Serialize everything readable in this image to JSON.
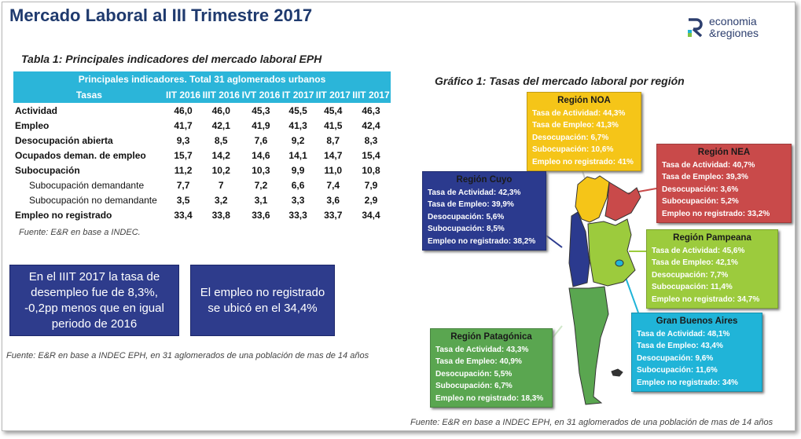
{
  "title": "Mercado Laboral al III Trimestre 2017",
  "logo": {
    "line1": "economia",
    "line2": "&regiones"
  },
  "table1": {
    "caption": "Tabla 1: Principales indicadores del mercado laboral EPH",
    "super_header": "Principales indicadores. Total 31 aglomerados urbanos",
    "columns": [
      "Tasas",
      "IIT 2016",
      "IIIT 2016",
      "IVT 2016",
      "IT 2017",
      "IIT 2017",
      "IIIT 2017"
    ],
    "rows": [
      {
        "label": "Actividad",
        "values": [
          "46,0",
          "46,0",
          "45,3",
          "45,5",
          "45,4",
          "46,3"
        ]
      },
      {
        "label": "Empleo",
        "values": [
          "41,7",
          "42,1",
          "41,9",
          "41,3",
          "41,5",
          "42,4"
        ]
      },
      {
        "label": "Desocupación abierta",
        "values": [
          "9,3",
          "8,5",
          "7,6",
          "9,2",
          "8,7",
          "8,3"
        ]
      },
      {
        "label": "Ocupados deman. de empleo",
        "values": [
          "15,7",
          "14,2",
          "14,6",
          "14,1",
          "14,7",
          "15,4"
        ]
      },
      {
        "label": "Subocupación",
        "values": [
          "11,2",
          "10,2",
          "10,3",
          "9,9",
          "11,0",
          "10,8"
        ]
      },
      {
        "label": "Subocupación demandante",
        "values": [
          "7,7",
          "7",
          "7,2",
          "6,6",
          "7,4",
          "7,9"
        ],
        "sub": true
      },
      {
        "label": "Subocupación no demandante",
        "values": [
          "3,5",
          "3,2",
          "3,1",
          "3,3",
          "3,6",
          "2,9"
        ],
        "sub": true
      },
      {
        "label": "Empleo no registrado",
        "values": [
          "33,4",
          "33,8",
          "33,6",
          "33,3",
          "33,7",
          "34,4"
        ]
      }
    ],
    "source": "Fuente: E&R en base a INDEC."
  },
  "highlights": [
    "En el IIIT 2017 la tasa de desempleo fue de 8,3%, -0,2pp menos que en igual periodo de 2016",
    "El empleo no registrado se ubicó en el 34,4%"
  ],
  "source_left": "Fuente: E&R en base a INDEC EPH, en 31 aglomerados de una población de mas de 14 años",
  "graph1": {
    "caption": "Gráfico 1: Tasas del mercado laboral por región",
    "source": "Fuente: E&R en base a INDEC EPH, en 31 aglomerados de una población de mas de 14 años",
    "regions": [
      {
        "name": "Región NOA",
        "color": "#f5c518",
        "lines": [
          "Tasa de Actividad: 44,3%",
          "Tasa de Empleo: 41,3%",
          "Desocupación: 6,7%",
          "Subocupación: 10,6%",
          "Empleo no registrado: 41%"
        ]
      },
      {
        "name": "Región NEA",
        "color": "#c94a4a",
        "lines": [
          "Tasa de Actividad: 40,7%",
          "Tasa de Empleo: 39,3%",
          "Desocupación: 3,6%",
          "Subocupación: 5,2%",
          "Empleo no registrado: 33,2%"
        ]
      },
      {
        "name": "Región Cuyo",
        "color": "#2b3a8e",
        "lines": [
          "Tasa de Actividad: 42,3%",
          "Tasa de Empleo: 39,9%",
          "Desocupación: 5,6%",
          "Subocupación: 8,5%",
          "Empleo no registrado: 38,2%"
        ]
      },
      {
        "name": "Región Pampeana",
        "color": "#9ccb3d",
        "lines": [
          "Tasa de Actividad: 45,6%",
          "Tasa de Empleo: 42,1%",
          "Desocupación: 7,7%",
          "Subocupación: 11,4%",
          "Empleo no registrado: 34,7%"
        ]
      },
      {
        "name": "Gran Buenos Aires",
        "color": "#20b4d8",
        "lines": [
          "Tasa de Actividad: 48,1%",
          "Tasa de Empleo: 43,4%",
          "Desocupación: 9,6%",
          "Subocupación: 11,6%",
          "Empleo no registrado: 34%"
        ]
      },
      {
        "name": "Región Patagónica",
        "color": "#5aa650",
        "lines": [
          "Tasa de Actividad: 43,3%",
          "Tasa de Empleo: 40,9%",
          "Desocupación: 5,5%",
          "Subocupación: 6,7%",
          "Empleo no registrado: 18,3%"
        ]
      }
    ]
  }
}
